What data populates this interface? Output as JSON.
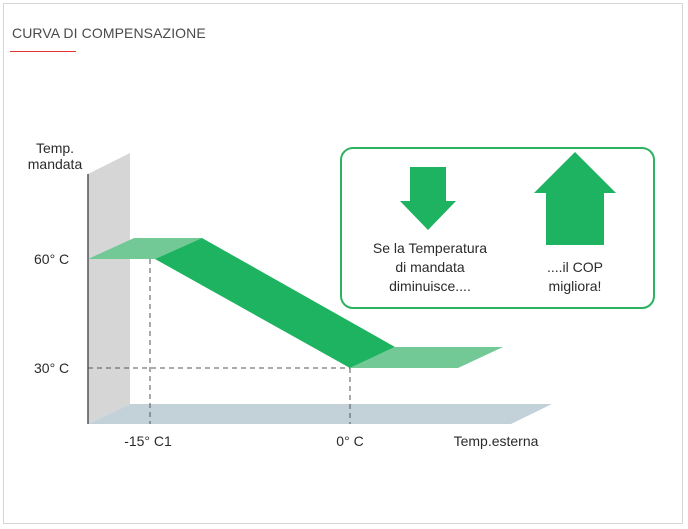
{
  "header": {
    "title": "CURVA DI COMPENSAZIONE"
  },
  "diagram": {
    "y_axis_label_line1": "Temp.",
    "y_axis_label_line2": "mandata",
    "x_axis_label": "Temp.esterna",
    "y_ticks": [
      "60° C",
      "30° C"
    ],
    "x_ticks": [
      "-15° C1",
      "0° C"
    ],
    "info_box": {
      "down_text_line1": "Se la Temperatura",
      "down_text_line2": "di mandata",
      "down_text_line3": "diminuisce....",
      "up_text_line1": "....il COP",
      "up_text_line2": "migliora!"
    },
    "colors": {
      "dark_green": "#1db360",
      "light_green": "#72c996",
      "wall": "#d6d6d6",
      "floor": "#c3d1d9",
      "box_border": "#2db360",
      "accent_red": "#e3342f"
    }
  }
}
